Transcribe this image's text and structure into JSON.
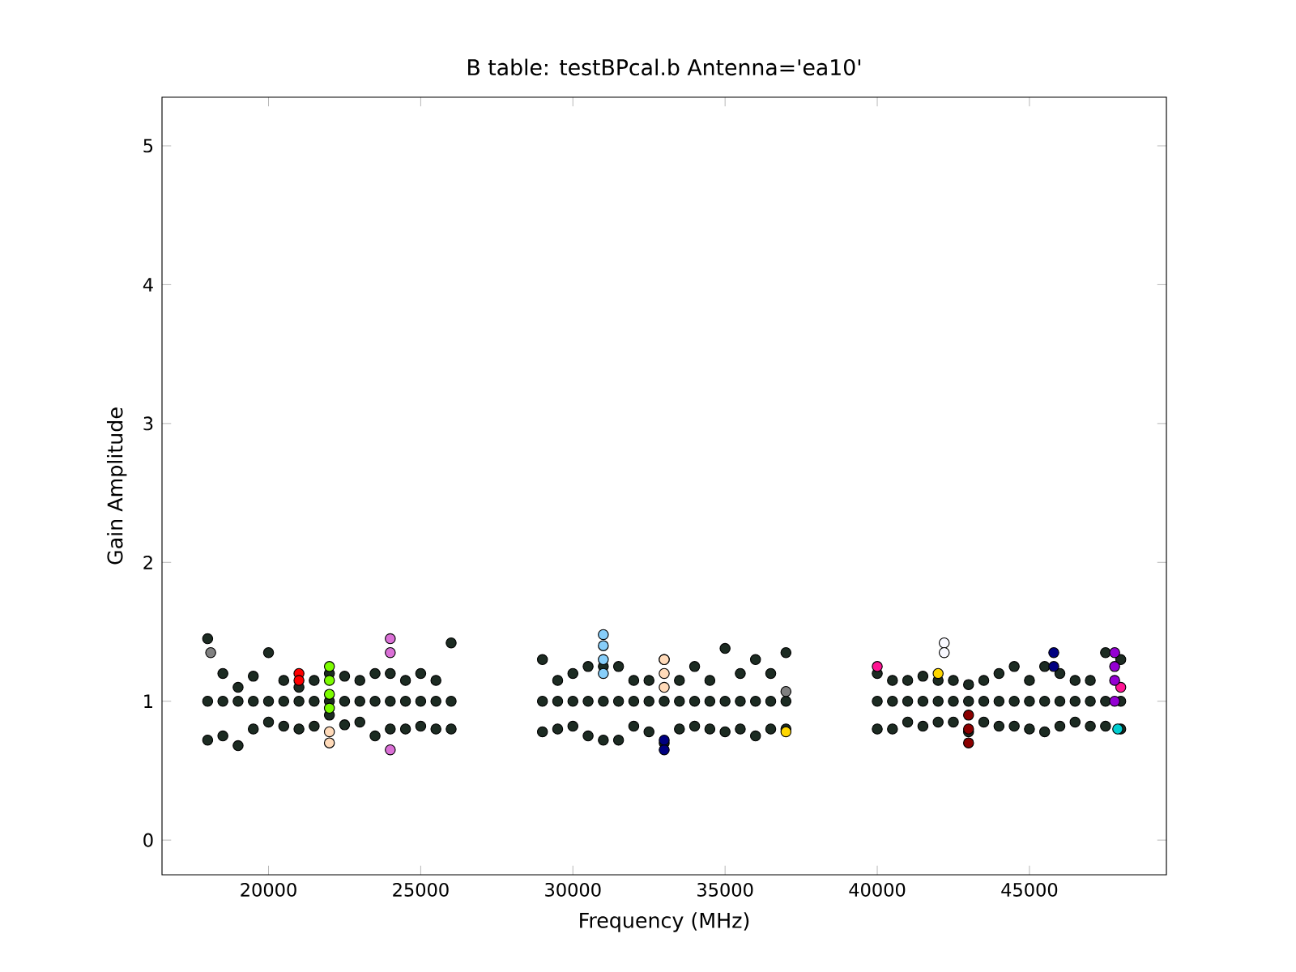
{
  "chart_data": {
    "type": "scatter",
    "title": "B table: testBPcal.b      Antenna='ea10'",
    "xlabel": "Frequency (MHz)",
    "ylabel": "Gain Amplitude",
    "xlim": [
      16500,
      49500
    ],
    "ylim": [
      -0.25,
      5.35
    ],
    "xticks": [
      20000,
      25000,
      30000,
      35000,
      40000,
      45000
    ],
    "yticks": [
      0,
      1,
      2,
      3,
      4,
      5
    ],
    "grid": false,
    "marker": "circle",
    "series": [
      {
        "color": "#1c2b22",
        "x": [
          18000,
          18000,
          18000,
          18500,
          18500,
          18500,
          19000,
          19000,
          19000,
          19500,
          19500,
          19500,
          20000,
          20000,
          20000,
          20500,
          20500,
          20500,
          21000,
          21000,
          21000,
          21500,
          21500,
          21500,
          22000,
          22000,
          22000,
          22500,
          22500,
          22500,
          23000,
          23000,
          23000,
          23500,
          23500,
          23500,
          24000,
          24000,
          24000,
          24500,
          24500,
          24500,
          25000,
          25000,
          25000,
          25500,
          25500,
          25500,
          26000,
          26000,
          26000,
          29000,
          29000,
          29000,
          29500,
          29500,
          29500,
          30000,
          30000,
          30000,
          30500,
          30500,
          30500,
          31000,
          31000,
          31000,
          31500,
          31500,
          31500,
          32000,
          32000,
          32000,
          32500,
          32500,
          32500,
          33000,
          33000,
          33000,
          33500,
          33500,
          33500,
          34000,
          34000,
          34000,
          34500,
          34500,
          34500,
          35000,
          35000,
          35000,
          35500,
          35500,
          35500,
          36000,
          36000,
          36000,
          36500,
          36500,
          36500,
          37000,
          37000,
          37000,
          40000,
          40000,
          40000,
          40500,
          40500,
          40500,
          41000,
          41000,
          41000,
          41500,
          41500,
          41500,
          42000,
          42000,
          42000,
          42500,
          42500,
          42500,
          43000,
          43000,
          43000,
          43500,
          43500,
          43500,
          44000,
          44000,
          44000,
          44500,
          44500,
          44500,
          45000,
          45000,
          45000,
          45500,
          45500,
          45500,
          46000,
          46000,
          46000,
          46500,
          46500,
          46500,
          47000,
          47000,
          47000,
          47500,
          47500,
          47500,
          48000,
          48000,
          48000
        ],
        "values": [
          1.45,
          1.0,
          0.72,
          1.2,
          1.0,
          0.75,
          1.1,
          1.0,
          0.68,
          1.18,
          1.0,
          0.8,
          1.35,
          1.0,
          0.85,
          1.15,
          1.0,
          0.82,
          1.1,
          1.0,
          0.8,
          1.15,
          1.0,
          0.82,
          1.2,
          1.0,
          0.9,
          1.18,
          1.0,
          0.83,
          1.15,
          1.0,
          0.85,
          1.2,
          1.0,
          0.75,
          1.2,
          1.0,
          0.8,
          1.15,
          1.0,
          0.8,
          1.2,
          1.0,
          0.82,
          1.15,
          1.0,
          0.8,
          1.42,
          1.0,
          0.8,
          1.3,
          1.0,
          0.78,
          1.15,
          1.0,
          0.8,
          1.2,
          1.0,
          0.82,
          1.25,
          1.0,
          0.75,
          1.25,
          1.0,
          0.72,
          1.25,
          1.0,
          0.72,
          1.15,
          1.0,
          0.82,
          1.15,
          1.0,
          0.78,
          1.3,
          1.0,
          0.7,
          1.15,
          1.0,
          0.8,
          1.25,
          1.0,
          0.82,
          1.15,
          1.0,
          0.8,
          1.38,
          1.0,
          0.78,
          1.2,
          1.0,
          0.8,
          1.3,
          1.0,
          0.75,
          1.2,
          1.0,
          0.8,
          1.35,
          1.0,
          0.8,
          1.2,
          1.0,
          0.8,
          1.15,
          1.0,
          0.8,
          1.15,
          1.0,
          0.85,
          1.18,
          1.0,
          0.82,
          1.15,
          1.0,
          0.85,
          1.15,
          1.0,
          0.85,
          1.12,
          1.0,
          0.78,
          1.15,
          1.0,
          0.85,
          1.2,
          1.0,
          0.82,
          1.25,
          1.0,
          0.82,
          1.15,
          1.0,
          0.8,
          1.25,
          1.0,
          0.78,
          1.2,
          1.0,
          0.82,
          1.15,
          1.0,
          0.85,
          1.15,
          1.0,
          0.82,
          1.35,
          1.0,
          0.82,
          1.3,
          1.0,
          0.8
        ]
      },
      {
        "color": "#87cefa",
        "x": [
          31000,
          31000,
          31000,
          31000
        ],
        "values": [
          1.48,
          1.4,
          1.3,
          1.2
        ]
      },
      {
        "color": "#ff0000",
        "x": [
          21000,
          21000
        ],
        "values": [
          1.2,
          1.15
        ]
      },
      {
        "color": "#7cfc00",
        "x": [
          22000,
          22000,
          22000,
          22000
        ],
        "values": [
          1.25,
          1.15,
          1.05,
          0.95
        ]
      },
      {
        "color": "#ffdab9",
        "x": [
          33000,
          33000,
          33000,
          22000,
          22000
        ],
        "values": [
          1.3,
          1.2,
          1.1,
          0.7,
          0.78
        ]
      },
      {
        "color": "#da70d6",
        "x": [
          24000,
          24000,
          24000
        ],
        "values": [
          1.45,
          1.35,
          0.65
        ]
      },
      {
        "color": "#ff1493",
        "x": [
          48000,
          40000
        ],
        "values": [
          1.1,
          1.25
        ]
      },
      {
        "color": "#9400d3",
        "x": [
          47800,
          47800,
          47800,
          47800
        ],
        "values": [
          1.35,
          1.25,
          1.15,
          1.0
        ]
      },
      {
        "color": "#000080",
        "x": [
          33000,
          33000,
          45800,
          45800
        ],
        "values": [
          0.65,
          0.72,
          1.35,
          1.25
        ]
      },
      {
        "color": "#8b0000",
        "x": [
          43000,
          43000,
          43000
        ],
        "values": [
          0.7,
          0.8,
          0.9
        ]
      },
      {
        "color": "#f8f8ff",
        "x": [
          42200,
          42200
        ],
        "values": [
          1.42,
          1.35
        ]
      },
      {
        "color": "#ffd700",
        "x": [
          37000,
          42000
        ],
        "values": [
          0.78,
          1.2
        ]
      },
      {
        "color": "#00ced1",
        "x": [
          47900
        ],
        "values": [
          0.8
        ]
      },
      {
        "color": "#808080",
        "x": [
          18100,
          37000
        ],
        "values": [
          1.35,
          1.07
        ]
      }
    ]
  }
}
